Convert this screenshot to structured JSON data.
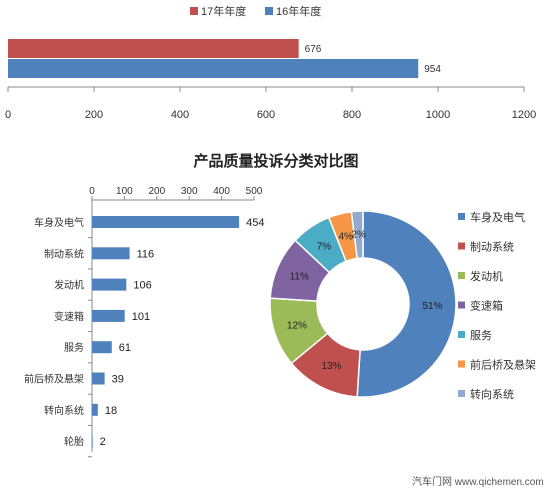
{
  "chart_data": [
    {
      "type": "bar",
      "orientation": "horizontal",
      "legend_position": "top",
      "series": [
        {
          "name": "17年年度",
          "color": "#c0504d",
          "values": [
            676
          ]
        },
        {
          "name": "16年年度",
          "color": "#4f81bd",
          "values": [
            954
          ]
        }
      ],
      "xlim": [
        0,
        1200
      ],
      "xticks": [
        "0",
        "200",
        "400",
        "600",
        "800",
        "1000",
        "1200"
      ],
      "grid": false
    },
    {
      "type": "bar",
      "orientation": "horizontal",
      "title": "产品质量投诉分类对比图",
      "categories": [
        "车身及电气",
        "制动系统",
        "发动机",
        "变速箱",
        "服务",
        "前后桥及悬架",
        "转向系统",
        "轮胎"
      ],
      "values": [
        454,
        116,
        106,
        101,
        61,
        39,
        18,
        2
      ],
      "color": "#4f81bd",
      "xlim": [
        0,
        500
      ],
      "xticks": [
        "0",
        "100",
        "200",
        "300",
        "400",
        "500"
      ],
      "xaxis_position": "top",
      "grid": false
    },
    {
      "type": "pie",
      "style": "donut",
      "legend_position": "right",
      "slices": [
        {
          "label": "车身及电气",
          "percent": 51,
          "percent_label": "51%",
          "color": "#4f81bd"
        },
        {
          "label": "制动系统",
          "percent": 13,
          "percent_label": "13%",
          "color": "#c0504d"
        },
        {
          "label": "发动机",
          "percent": 12,
          "percent_label": "12%",
          "color": "#9bbb59"
        },
        {
          "label": "变速箱",
          "percent": 11,
          "percent_label": "11%",
          "color": "#8064a2"
        },
        {
          "label": "服务",
          "percent": 7,
          "percent_label": "7%",
          "color": "#4bacc6"
        },
        {
          "label": "前后桥及悬架",
          "percent": 4,
          "percent_label": "4%",
          "color": "#f79646"
        },
        {
          "label": "转向系统",
          "percent": 2,
          "percent_label": "2%",
          "color": "#93a9cf"
        }
      ]
    }
  ],
  "watermark": {
    "text": "汽车门网 www.qichemen.com"
  }
}
